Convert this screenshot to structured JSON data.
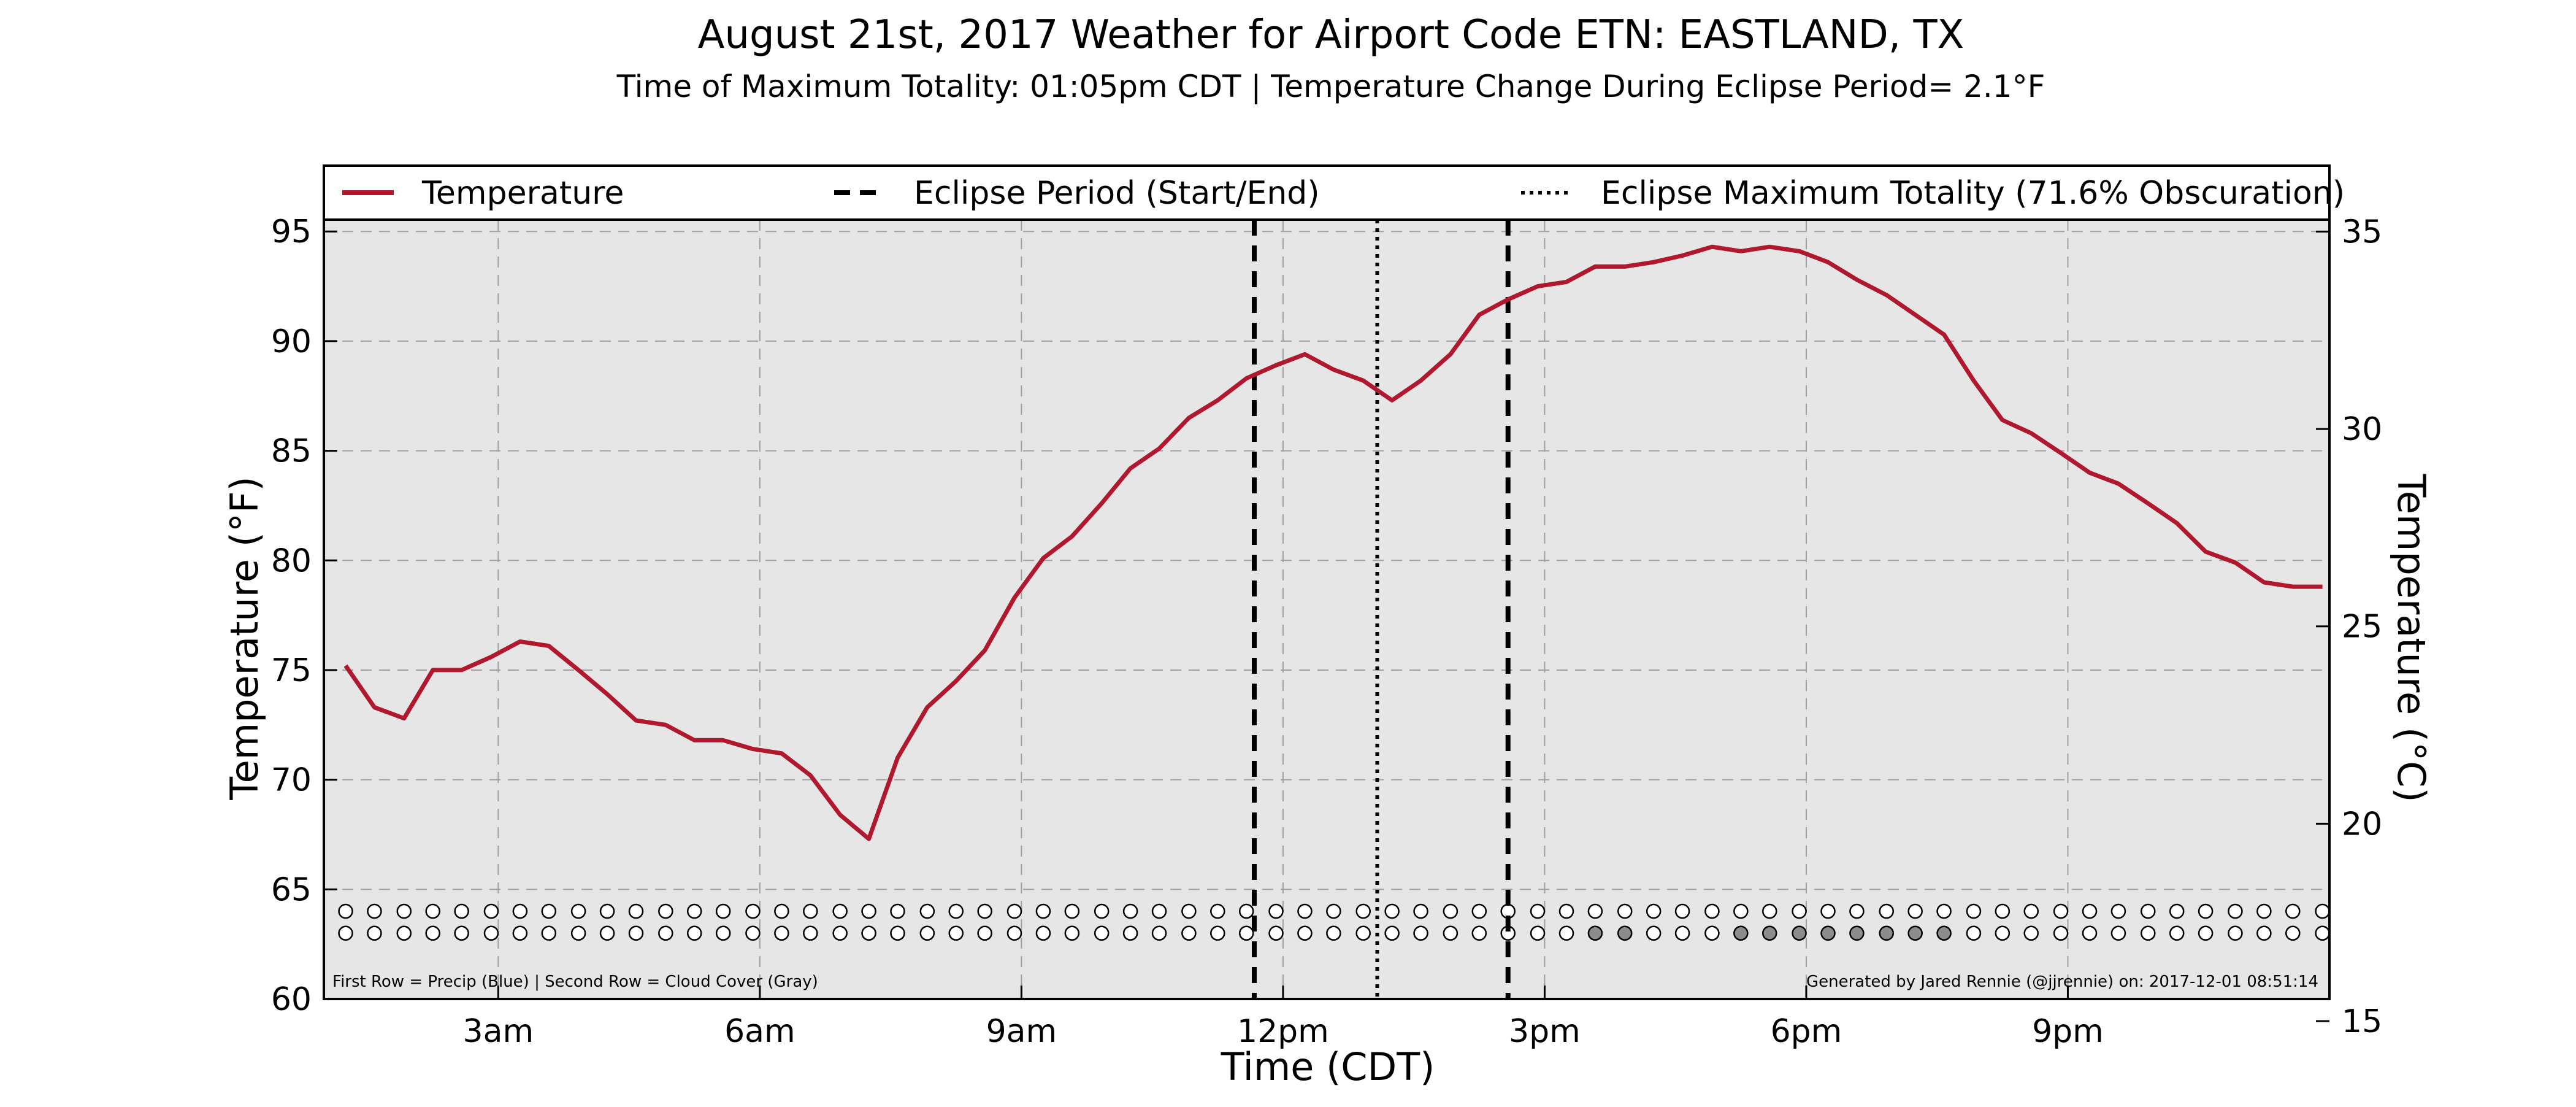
{
  "chart_data": {
    "type": "line",
    "title": "August 21st, 2017 Weather for Airport Code ETN: EASTLAND, TX",
    "subtitle": "Time of Maximum Totality: 01:05pm CDT | Temperature Change During Eclipse Period= 2.1°F",
    "xlabel": "Time (CDT)",
    "ylabel": "Temperature (°F)",
    "ylabel_right": "Temperature (°C)",
    "xlim": [
      1.0,
      24.0
    ],
    "ylim": [
      60,
      98
    ],
    "ylim_right_c": [
      15.56,
      36.67
    ],
    "grid": true,
    "legend_placement": "top",
    "x_ticks": [
      {
        "value": 3,
        "label": "3am"
      },
      {
        "value": 6,
        "label": "6am"
      },
      {
        "value": 9,
        "label": "9am"
      },
      {
        "value": 12,
        "label": "12pm"
      },
      {
        "value": 15,
        "label": "3pm"
      },
      {
        "value": 18,
        "label": "6pm"
      },
      {
        "value": 21,
        "label": "9pm"
      }
    ],
    "y_ticks": [
      60,
      65,
      70,
      75,
      80,
      85,
      90,
      95
    ],
    "y_ticks_right": [
      15,
      20,
      25,
      30,
      35
    ],
    "legend": [
      {
        "label": "Temperature",
        "style": "solid"
      },
      {
        "label": "Eclipse Period (Start/End)",
        "style": "dashed"
      },
      {
        "label": "Eclipse Maximum Totality (71.6% Obscuration)",
        "style": "dotted"
      }
    ],
    "series": [
      {
        "name": "Temperature",
        "color": "#b0182e",
        "x": [
          1.25,
          1.58,
          1.92,
          2.25,
          2.58,
          2.92,
          3.25,
          3.58,
          3.92,
          4.25,
          4.58,
          4.92,
          5.25,
          5.58,
          5.92,
          6.25,
          6.58,
          6.92,
          7.25,
          7.58,
          7.92,
          8.25,
          8.58,
          8.92,
          9.25,
          9.58,
          9.92,
          10.25,
          10.58,
          10.92,
          11.25,
          11.58,
          11.92,
          12.25,
          12.58,
          12.92,
          13.25,
          13.58,
          13.92,
          14.25,
          14.58,
          14.92,
          15.25,
          15.58,
          15.92,
          16.25,
          16.58,
          16.92,
          17.25,
          17.58,
          17.92,
          18.25,
          18.58,
          18.92,
          19.25,
          19.58,
          19.92,
          20.25,
          20.58,
          20.92,
          21.25,
          21.58,
          21.92,
          22.25,
          22.58,
          22.92,
          23.25,
          23.58,
          23.92
        ],
        "y": [
          75.2,
          73.3,
          72.8,
          75.0,
          75.0,
          75.6,
          76.3,
          76.1,
          75.0,
          73.9,
          72.7,
          72.5,
          71.8,
          71.8,
          71.4,
          71.2,
          70.2,
          68.4,
          67.3,
          71.0,
          73.3,
          74.5,
          75.9,
          78.3,
          80.1,
          81.1,
          82.6,
          84.2,
          85.1,
          86.5,
          87.3,
          88.3,
          88.9,
          89.4,
          88.7,
          88.2,
          87.3,
          88.2,
          89.4,
          91.2,
          91.9,
          92.5,
          92.7,
          93.4,
          93.4,
          93.6,
          93.9,
          94.3,
          94.1,
          94.3,
          94.1,
          93.6,
          92.8,
          92.1,
          91.2,
          90.3,
          88.2,
          86.4,
          85.8,
          84.9,
          84.0,
          83.5,
          82.6,
          81.7,
          80.4,
          79.9,
          79.0,
          78.8,
          78.8
        ]
      }
    ],
    "eclipse_lines": [
      {
        "kind": "start",
        "x": 11.67,
        "style": "dashed"
      },
      {
        "kind": "max_totality",
        "x": 13.08,
        "style": "dotted"
      },
      {
        "kind": "end",
        "x": 14.58,
        "style": "dashed"
      }
    ],
    "marker_rows": {
      "precip_y": 64.0,
      "cloud_y": 63.0,
      "x": [
        1.25,
        1.58,
        1.92,
        2.25,
        2.58,
        2.92,
        3.25,
        3.58,
        3.92,
        4.25,
        4.58,
        4.92,
        5.25,
        5.58,
        5.92,
        6.25,
        6.58,
        6.92,
        7.25,
        7.58,
        7.92,
        8.25,
        8.58,
        8.92,
        9.25,
        9.58,
        9.92,
        10.25,
        10.58,
        10.92,
        11.25,
        11.58,
        11.92,
        12.25,
        12.58,
        12.92,
        13.25,
        13.58,
        13.92,
        14.25,
        14.58,
        14.92,
        15.25,
        15.58,
        15.92,
        16.25,
        16.58,
        16.92,
        17.25,
        17.58,
        17.92,
        18.25,
        18.58,
        18.92,
        19.25,
        19.58,
        19.92,
        20.25,
        20.58,
        20.92,
        21.25,
        21.58,
        21.92,
        22.25,
        22.58,
        22.92,
        23.25,
        23.58,
        23.92
      ],
      "cloud_filled_x": [
        15.58,
        15.92,
        17.25,
        17.58,
        17.92,
        18.25,
        18.58,
        18.92,
        19.25,
        19.58
      ],
      "precip_color": "#3b6fd6",
      "cloud_color": "#8c8c8c"
    },
    "footnote_left": "First Row = Precip (Blue) | Second Row = Cloud Cover (Gray)",
    "footnote_right": "Generated by Jared Rennie (@jjrennie) on: 2017-12-01 08:51:14",
    "colors": {
      "plot_background": "#e6e6e6",
      "temperature_line": "#b0182e",
      "grid": "#a0a0a0"
    }
  }
}
